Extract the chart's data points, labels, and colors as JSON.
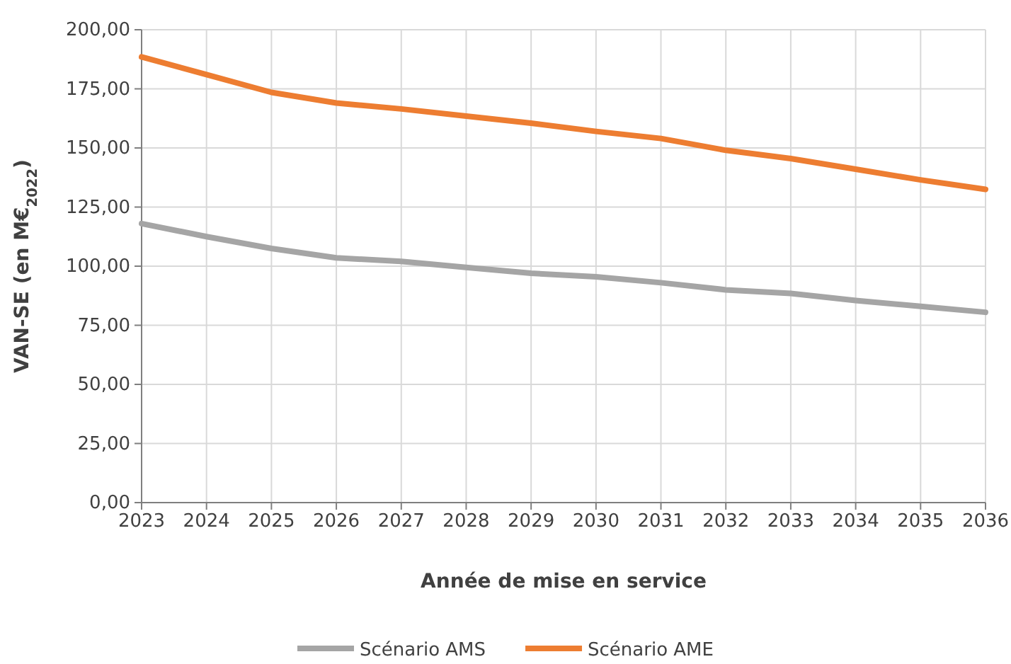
{
  "chart_data": {
    "type": "line",
    "xlabel": "Année de mise en service",
    "ylabel": "VAN-SE (en M€$_{2022}$)",
    "x": [
      2023,
      2024,
      2025,
      2026,
      2027,
      2028,
      2029,
      2030,
      2031,
      2032,
      2033,
      2034,
      2035,
      2036
    ],
    "xlim": [
      2023,
      2036
    ],
    "xticks": [
      2023,
      2024,
      2025,
      2026,
      2027,
      2028,
      2029,
      2030,
      2031,
      2032,
      2033,
      2034,
      2035,
      2036
    ],
    "ylim": [
      0,
      200
    ],
    "yticks": [
      {
        "value": 0,
        "label": "0,00"
      },
      {
        "value": 25,
        "label": "25,00"
      },
      {
        "value": 50,
        "label": "50,00"
      },
      {
        "value": 75,
        "label": "75,00"
      },
      {
        "value": 100,
        "label": "100,00"
      },
      {
        "value": 125,
        "label": "125,00"
      },
      {
        "value": 150,
        "label": "150,00"
      },
      {
        "value": 175,
        "label": "175,00"
      },
      {
        "value": 200,
        "label": "200,00"
      }
    ],
    "series": [
      {
        "name": "Scénario AMS",
        "color": "#a5a5a5",
        "values": [
          118,
          112.5,
          107.5,
          103.5,
          102,
          99.5,
          97,
          95.5,
          93,
          90,
          88.5,
          85.5,
          83,
          80.5
        ]
      },
      {
        "name": "Scénario AME",
        "color": "#ed7d31",
        "values": [
          188.5,
          181,
          173.5,
          169,
          166.5,
          163.5,
          160.5,
          157,
          154,
          149,
          145.5,
          141,
          136.5,
          132.5
        ]
      }
    ],
    "grid": true,
    "legend": "bottom",
    "marker": "none",
    "line_style": "solid"
  }
}
